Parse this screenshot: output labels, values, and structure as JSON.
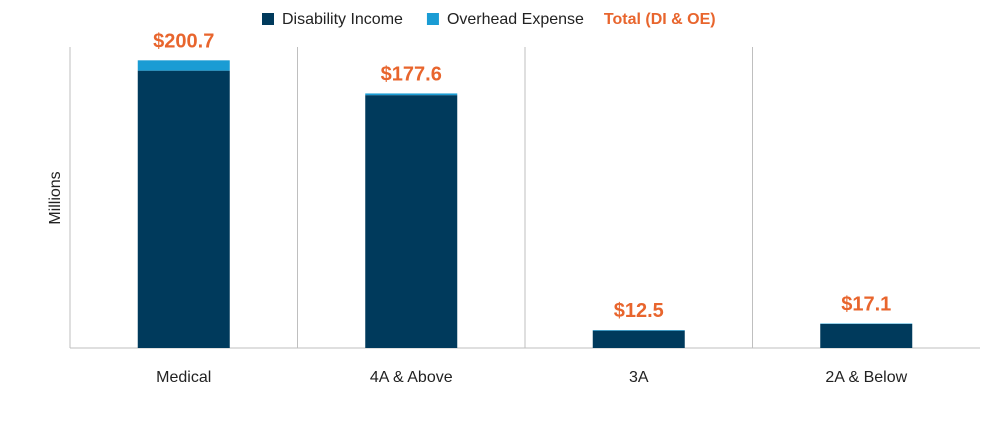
{
  "chart_data": {
    "type": "bar",
    "stacked": true,
    "title": "",
    "xlabel": "",
    "ylabel": "Millions",
    "ylim": [
      0,
      210
    ],
    "grid": false,
    "legend_position": "top-center",
    "categories": [
      "Medical",
      "4A & Above",
      "3A",
      "2A & Below"
    ],
    "series": [
      {
        "name": "Disability Income",
        "color": "#003a5c",
        "values": [
          193.5,
          176.4,
          12.1,
          16.8
        ]
      },
      {
        "name": "Overhead Expense",
        "color": "#1a9cd4",
        "values": [
          7.2,
          1.2,
          0.4,
          0.3
        ]
      }
    ],
    "totals": {
      "name": "Total (DI & OE)",
      "color": "#e8652d",
      "values": [
        200.7,
        177.6,
        12.5,
        17.1
      ],
      "labels": [
        "$200.7",
        "$177.6",
        "$12.5",
        "$17.1"
      ]
    }
  }
}
